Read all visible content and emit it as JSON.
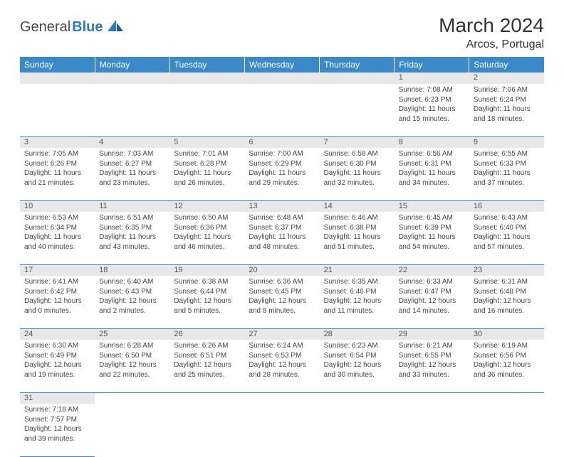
{
  "logo": {
    "text1": "General",
    "text2": "Blue"
  },
  "title": "March 2024",
  "location": "Arcos, Portugal",
  "colors": {
    "header_bg": "#3a89c9",
    "header_fg": "#ffffff",
    "daynum_bg": "#e8e8e8",
    "cell_border": "#3a89c9",
    "text": "#333333",
    "logo_blue": "#2e7bc0"
  },
  "weekdays": [
    "Sunday",
    "Monday",
    "Tuesday",
    "Wednesday",
    "Thursday",
    "Friday",
    "Saturday"
  ],
  "weeks": [
    {
      "days": [
        null,
        null,
        null,
        null,
        null,
        {
          "n": "1",
          "sr": "Sunrise: 7:08 AM",
          "ss": "Sunset: 6:23 PM",
          "d1": "Daylight: 11 hours",
          "d2": "and 15 minutes."
        },
        {
          "n": "2",
          "sr": "Sunrise: 7:06 AM",
          "ss": "Sunset: 6:24 PM",
          "d1": "Daylight: 11 hours",
          "d2": "and 18 minutes."
        }
      ]
    },
    {
      "days": [
        {
          "n": "3",
          "sr": "Sunrise: 7:05 AM",
          "ss": "Sunset: 6:26 PM",
          "d1": "Daylight: 11 hours",
          "d2": "and 21 minutes."
        },
        {
          "n": "4",
          "sr": "Sunrise: 7:03 AM",
          "ss": "Sunset: 6:27 PM",
          "d1": "Daylight: 11 hours",
          "d2": "and 23 minutes."
        },
        {
          "n": "5",
          "sr": "Sunrise: 7:01 AM",
          "ss": "Sunset: 6:28 PM",
          "d1": "Daylight: 11 hours",
          "d2": "and 26 minutes."
        },
        {
          "n": "6",
          "sr": "Sunrise: 7:00 AM",
          "ss": "Sunset: 6:29 PM",
          "d1": "Daylight: 11 hours",
          "d2": "and 29 minutes."
        },
        {
          "n": "7",
          "sr": "Sunrise: 6:58 AM",
          "ss": "Sunset: 6:30 PM",
          "d1": "Daylight: 11 hours",
          "d2": "and 32 minutes."
        },
        {
          "n": "8",
          "sr": "Sunrise: 6:56 AM",
          "ss": "Sunset: 6:31 PM",
          "d1": "Daylight: 11 hours",
          "d2": "and 34 minutes."
        },
        {
          "n": "9",
          "sr": "Sunrise: 6:55 AM",
          "ss": "Sunset: 6:33 PM",
          "d1": "Daylight: 11 hours",
          "d2": "and 37 minutes."
        }
      ]
    },
    {
      "days": [
        {
          "n": "10",
          "sr": "Sunrise: 6:53 AM",
          "ss": "Sunset: 6:34 PM",
          "d1": "Daylight: 11 hours",
          "d2": "and 40 minutes."
        },
        {
          "n": "11",
          "sr": "Sunrise: 6:51 AM",
          "ss": "Sunset: 6:35 PM",
          "d1": "Daylight: 11 hours",
          "d2": "and 43 minutes."
        },
        {
          "n": "12",
          "sr": "Sunrise: 6:50 AM",
          "ss": "Sunset: 6:36 PM",
          "d1": "Daylight: 11 hours",
          "d2": "and 46 minutes."
        },
        {
          "n": "13",
          "sr": "Sunrise: 6:48 AM",
          "ss": "Sunset: 6:37 PM",
          "d1": "Daylight: 11 hours",
          "d2": "and 48 minutes."
        },
        {
          "n": "14",
          "sr": "Sunrise: 6:46 AM",
          "ss": "Sunset: 6:38 PM",
          "d1": "Daylight: 11 hours",
          "d2": "and 51 minutes."
        },
        {
          "n": "15",
          "sr": "Sunrise: 6:45 AM",
          "ss": "Sunset: 6:39 PM",
          "d1": "Daylight: 11 hours",
          "d2": "and 54 minutes."
        },
        {
          "n": "16",
          "sr": "Sunrise: 6:43 AM",
          "ss": "Sunset: 6:40 PM",
          "d1": "Daylight: 11 hours",
          "d2": "and 57 minutes."
        }
      ]
    },
    {
      "days": [
        {
          "n": "17",
          "sr": "Sunrise: 6:41 AM",
          "ss": "Sunset: 6:42 PM",
          "d1": "Daylight: 12 hours",
          "d2": "and 0 minutes."
        },
        {
          "n": "18",
          "sr": "Sunrise: 6:40 AM",
          "ss": "Sunset: 6:43 PM",
          "d1": "Daylight: 12 hours",
          "d2": "and 2 minutes."
        },
        {
          "n": "19",
          "sr": "Sunrise: 6:38 AM",
          "ss": "Sunset: 6:44 PM",
          "d1": "Daylight: 12 hours",
          "d2": "and 5 minutes."
        },
        {
          "n": "20",
          "sr": "Sunrise: 6:36 AM",
          "ss": "Sunset: 6:45 PM",
          "d1": "Daylight: 12 hours",
          "d2": "and 8 minutes."
        },
        {
          "n": "21",
          "sr": "Sunrise: 6:35 AM",
          "ss": "Sunset: 6:46 PM",
          "d1": "Daylight: 12 hours",
          "d2": "and 11 minutes."
        },
        {
          "n": "22",
          "sr": "Sunrise: 6:33 AM",
          "ss": "Sunset: 6:47 PM",
          "d1": "Daylight: 12 hours",
          "d2": "and 14 minutes."
        },
        {
          "n": "23",
          "sr": "Sunrise: 6:31 AM",
          "ss": "Sunset: 6:48 PM",
          "d1": "Daylight: 12 hours",
          "d2": "and 16 minutes."
        }
      ]
    },
    {
      "days": [
        {
          "n": "24",
          "sr": "Sunrise: 6:30 AM",
          "ss": "Sunset: 6:49 PM",
          "d1": "Daylight: 12 hours",
          "d2": "and 19 minutes."
        },
        {
          "n": "25",
          "sr": "Sunrise: 6:28 AM",
          "ss": "Sunset: 6:50 PM",
          "d1": "Daylight: 12 hours",
          "d2": "and 22 minutes."
        },
        {
          "n": "26",
          "sr": "Sunrise: 6:26 AM",
          "ss": "Sunset: 6:51 PM",
          "d1": "Daylight: 12 hours",
          "d2": "and 25 minutes."
        },
        {
          "n": "27",
          "sr": "Sunrise: 6:24 AM",
          "ss": "Sunset: 6:53 PM",
          "d1": "Daylight: 12 hours",
          "d2": "and 28 minutes."
        },
        {
          "n": "28",
          "sr": "Sunrise: 6:23 AM",
          "ss": "Sunset: 6:54 PM",
          "d1": "Daylight: 12 hours",
          "d2": "and 30 minutes."
        },
        {
          "n": "29",
          "sr": "Sunrise: 6:21 AM",
          "ss": "Sunset: 6:55 PM",
          "d1": "Daylight: 12 hours",
          "d2": "and 33 minutes."
        },
        {
          "n": "30",
          "sr": "Sunrise: 6:19 AM",
          "ss": "Sunset: 6:56 PM",
          "d1": "Daylight: 12 hours",
          "d2": "and 36 minutes."
        }
      ]
    },
    {
      "days": [
        {
          "n": "31",
          "sr": "Sunrise: 7:18 AM",
          "ss": "Sunset: 7:57 PM",
          "d1": "Daylight: 12 hours",
          "d2": "and 39 minutes."
        },
        null,
        null,
        null,
        null,
        null,
        null
      ]
    }
  ]
}
